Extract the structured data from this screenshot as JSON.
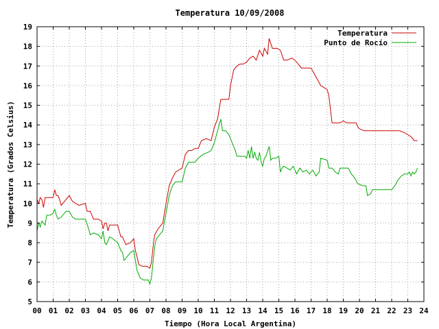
{
  "chart_data": {
    "type": "line",
    "title": "Temperatura 10/09/2008",
    "xlabel": "Tiempo (Hora Local Argentina)",
    "ylabel": "Temperatura (Grados Celsius)",
    "xlim": [
      0,
      24
    ],
    "ylim": [
      5,
      19
    ],
    "x_ticks": [
      "00",
      "01",
      "02",
      "03",
      "04",
      "05",
      "06",
      "07",
      "08",
      "09",
      "10",
      "11",
      "12",
      "13",
      "14",
      "15",
      "16",
      "17",
      "18",
      "19",
      "20",
      "21",
      "22",
      "23",
      "24"
    ],
    "y_ticks": [
      5,
      6,
      7,
      8,
      9,
      10,
      11,
      12,
      13,
      14,
      15,
      16,
      17,
      18,
      19
    ],
    "grid": true,
    "legend_position": "top-right",
    "series": [
      {
        "name": "Temperatura",
        "color": "#cc0000",
        "points": [
          [
            0.0,
            10.2
          ],
          [
            0.1,
            10.0
          ],
          [
            0.2,
            10.3
          ],
          [
            0.3,
            10.2
          ],
          [
            0.4,
            9.8
          ],
          [
            0.5,
            10.3
          ],
          [
            0.8,
            10.3
          ],
          [
            1.0,
            10.3
          ],
          [
            1.1,
            10.7
          ],
          [
            1.2,
            10.4
          ],
          [
            1.3,
            10.4
          ],
          [
            1.4,
            10.2
          ],
          [
            1.5,
            9.9
          ],
          [
            1.7,
            10.1
          ],
          [
            2.0,
            10.4
          ],
          [
            2.2,
            10.1
          ],
          [
            2.4,
            10.0
          ],
          [
            2.6,
            9.9
          ],
          [
            3.0,
            10.0
          ],
          [
            3.1,
            9.6
          ],
          [
            3.3,
            9.6
          ],
          [
            3.5,
            9.2
          ],
          [
            3.8,
            9.2
          ],
          [
            4.0,
            9.1
          ],
          [
            4.1,
            8.7
          ],
          [
            4.2,
            9.0
          ],
          [
            4.3,
            9.0
          ],
          [
            4.4,
            8.6
          ],
          [
            4.5,
            8.9
          ],
          [
            5.0,
            8.9
          ],
          [
            5.2,
            8.3
          ],
          [
            5.3,
            8.3
          ],
          [
            5.5,
            7.9
          ],
          [
            5.8,
            8.0
          ],
          [
            6.0,
            8.2
          ],
          [
            6.1,
            7.6
          ],
          [
            6.2,
            7.3
          ],
          [
            6.3,
            6.9
          ],
          [
            6.5,
            6.8
          ],
          [
            6.8,
            6.8
          ],
          [
            7.0,
            6.7
          ],
          [
            7.1,
            7.0
          ],
          [
            7.2,
            7.8
          ],
          [
            7.3,
            8.4
          ],
          [
            7.5,
            8.7
          ],
          [
            7.8,
            9.0
          ],
          [
            8.0,
            10.0
          ],
          [
            8.2,
            10.9
          ],
          [
            8.4,
            11.3
          ],
          [
            8.6,
            11.6
          ],
          [
            8.8,
            11.7
          ],
          [
            9.0,
            11.8
          ],
          [
            9.2,
            12.5
          ],
          [
            9.4,
            12.7
          ],
          [
            9.6,
            12.7
          ],
          [
            9.8,
            12.8
          ],
          [
            10.0,
            12.8
          ],
          [
            10.2,
            13.2
          ],
          [
            10.5,
            13.3
          ],
          [
            10.8,
            13.2
          ],
          [
            11.0,
            13.9
          ],
          [
            11.2,
            14.3
          ],
          [
            11.4,
            15.3
          ],
          [
            11.6,
            15.3
          ],
          [
            11.9,
            15.3
          ],
          [
            12.0,
            16.0
          ],
          [
            12.2,
            16.8
          ],
          [
            12.4,
            17.0
          ],
          [
            12.6,
            17.1
          ],
          [
            12.8,
            17.1
          ],
          [
            13.0,
            17.2
          ],
          [
            13.2,
            17.4
          ],
          [
            13.4,
            17.5
          ],
          [
            13.6,
            17.3
          ],
          [
            13.8,
            17.8
          ],
          [
            14.0,
            17.5
          ],
          [
            14.1,
            17.9
          ],
          [
            14.3,
            17.6
          ],
          [
            14.4,
            18.4
          ],
          [
            14.6,
            17.9
          ],
          [
            14.9,
            17.9
          ],
          [
            15.1,
            17.8
          ],
          [
            15.3,
            17.3
          ],
          [
            15.5,
            17.3
          ],
          [
            15.8,
            17.4
          ],
          [
            16.0,
            17.3
          ],
          [
            16.2,
            17.1
          ],
          [
            16.4,
            16.9
          ],
          [
            17.0,
            16.9
          ],
          [
            17.2,
            16.6
          ],
          [
            17.4,
            16.3
          ],
          [
            17.6,
            16.0
          ],
          [
            17.8,
            15.9
          ],
          [
            18.0,
            15.8
          ],
          [
            18.1,
            15.5
          ],
          [
            18.2,
            14.8
          ],
          [
            18.3,
            14.1
          ],
          [
            18.5,
            14.1
          ],
          [
            18.8,
            14.1
          ],
          [
            19.0,
            14.2
          ],
          [
            19.2,
            14.1
          ],
          [
            19.5,
            14.1
          ],
          [
            19.8,
            14.1
          ],
          [
            19.9,
            13.9
          ],
          [
            20.0,
            13.8
          ],
          [
            20.3,
            13.7
          ],
          [
            20.5,
            13.7
          ],
          [
            21.0,
            13.7
          ],
          [
            22.0,
            13.7
          ],
          [
            22.5,
            13.7
          ],
          [
            22.8,
            13.6
          ],
          [
            23.0,
            13.5
          ],
          [
            23.2,
            13.4
          ],
          [
            23.4,
            13.2
          ],
          [
            23.6,
            13.2
          ]
        ]
      },
      {
        "name": "Punto de Rocío",
        "color": "#00aa00",
        "points": [
          [
            0.0,
            8.6
          ],
          [
            0.1,
            9.0
          ],
          [
            0.2,
            8.8
          ],
          [
            0.3,
            9.1
          ],
          [
            0.4,
            9.0
          ],
          [
            0.5,
            8.9
          ],
          [
            0.6,
            9.4
          ],
          [
            0.8,
            9.4
          ],
          [
            1.0,
            9.5
          ],
          [
            1.1,
            9.7
          ],
          [
            1.2,
            9.4
          ],
          [
            1.3,
            9.2
          ],
          [
            1.5,
            9.3
          ],
          [
            1.8,
            9.6
          ],
          [
            2.0,
            9.6
          ],
          [
            2.2,
            9.3
          ],
          [
            2.4,
            9.2
          ],
          [
            3.0,
            9.2
          ],
          [
            3.2,
            8.7
          ],
          [
            3.3,
            8.4
          ],
          [
            3.5,
            8.5
          ],
          [
            3.8,
            8.4
          ],
          [
            4.0,
            8.2
          ],
          [
            4.1,
            8.6
          ],
          [
            4.2,
            8.0
          ],
          [
            4.3,
            7.9
          ],
          [
            4.5,
            8.3
          ],
          [
            4.7,
            8.2
          ],
          [
            5.0,
            8.0
          ],
          [
            5.2,
            7.6
          ],
          [
            5.3,
            7.5
          ],
          [
            5.4,
            7.1
          ],
          [
            5.6,
            7.3
          ],
          [
            5.8,
            7.5
          ],
          [
            6.0,
            7.6
          ],
          [
            6.1,
            7.1
          ],
          [
            6.2,
            6.6
          ],
          [
            6.4,
            6.2
          ],
          [
            6.6,
            6.1
          ],
          [
            6.9,
            6.1
          ],
          [
            7.0,
            5.9
          ],
          [
            7.1,
            6.2
          ],
          [
            7.3,
            7.8
          ],
          [
            7.4,
            8.2
          ],
          [
            7.6,
            8.4
          ],
          [
            7.8,
            8.6
          ],
          [
            8.0,
            9.5
          ],
          [
            8.2,
            10.4
          ],
          [
            8.4,
            10.9
          ],
          [
            8.6,
            11.1
          ],
          [
            9.0,
            11.1
          ],
          [
            9.2,
            11.8
          ],
          [
            9.4,
            12.1
          ],
          [
            9.8,
            12.1
          ],
          [
            10.0,
            12.3
          ],
          [
            10.3,
            12.5
          ],
          [
            10.6,
            12.6
          ],
          [
            10.8,
            12.7
          ],
          [
            11.0,
            13.1
          ],
          [
            11.2,
            13.7
          ],
          [
            11.4,
            14.3
          ],
          [
            11.5,
            13.7
          ],
          [
            11.7,
            13.7
          ],
          [
            11.9,
            13.5
          ],
          [
            12.1,
            13.1
          ],
          [
            12.3,
            12.7
          ],
          [
            12.4,
            12.4
          ],
          [
            12.6,
            12.4
          ],
          [
            12.9,
            12.4
          ],
          [
            13.0,
            12.3
          ],
          [
            13.1,
            12.7
          ],
          [
            13.2,
            12.3
          ],
          [
            13.3,
            12.9
          ],
          [
            13.4,
            12.3
          ],
          [
            13.5,
            12.6
          ],
          [
            13.6,
            12.3
          ],
          [
            13.7,
            12.2
          ],
          [
            13.8,
            12.6
          ],
          [
            13.9,
            12.1
          ],
          [
            14.0,
            11.9
          ],
          [
            14.1,
            12.3
          ],
          [
            14.2,
            12.4
          ],
          [
            14.4,
            12.9
          ],
          [
            14.5,
            12.2
          ],
          [
            14.6,
            12.3
          ],
          [
            14.8,
            12.3
          ],
          [
            15.0,
            12.4
          ],
          [
            15.1,
            11.6
          ],
          [
            15.2,
            11.8
          ],
          [
            15.3,
            11.9
          ],
          [
            15.5,
            11.8
          ],
          [
            15.7,
            11.7
          ],
          [
            15.9,
            11.9
          ],
          [
            16.1,
            11.5
          ],
          [
            16.3,
            11.8
          ],
          [
            16.5,
            11.6
          ],
          [
            16.7,
            11.7
          ],
          [
            16.9,
            11.5
          ],
          [
            17.1,
            11.7
          ],
          [
            17.3,
            11.4
          ],
          [
            17.5,
            11.6
          ],
          [
            17.6,
            12.3
          ],
          [
            18.0,
            12.2
          ],
          [
            18.1,
            11.8
          ],
          [
            18.3,
            11.8
          ],
          [
            18.5,
            11.6
          ],
          [
            18.7,
            11.5
          ],
          [
            18.8,
            11.8
          ],
          [
            19.3,
            11.8
          ],
          [
            19.5,
            11.5
          ],
          [
            19.7,
            11.3
          ],
          [
            19.9,
            11.0
          ],
          [
            20.2,
            10.9
          ],
          [
            20.4,
            10.9
          ],
          [
            20.5,
            10.4
          ],
          [
            20.7,
            10.5
          ],
          [
            20.8,
            10.7
          ],
          [
            21.2,
            10.7
          ],
          [
            21.6,
            10.7
          ],
          [
            22.0,
            10.7
          ],
          [
            22.2,
            10.9
          ],
          [
            22.4,
            11.2
          ],
          [
            22.6,
            11.4
          ],
          [
            22.8,
            11.5
          ],
          [
            23.0,
            11.5
          ],
          [
            23.1,
            11.6
          ],
          [
            23.2,
            11.4
          ],
          [
            23.3,
            11.6
          ],
          [
            23.4,
            11.5
          ],
          [
            23.5,
            11.6
          ],
          [
            23.6,
            11.8
          ]
        ]
      }
    ]
  }
}
